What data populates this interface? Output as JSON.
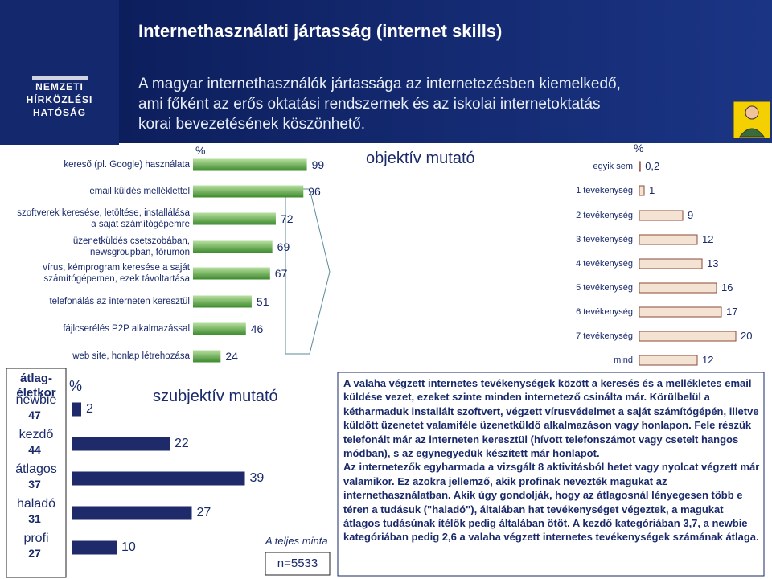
{
  "header": {
    "title": "Internethasználati jártasság (internet skills)",
    "logo": [
      "NEMZETI",
      "HÍRKÖZLÉSI",
      "HATÓSÁG"
    ],
    "subtitle": [
      "A magyar internethasználók jártassága az internetezésben kiemelkedő,",
      "ami főként az erős oktatási rendszernek és az iskolai internetoktatás",
      "korai bevezetésének köszönhető."
    ]
  },
  "chart_data": [
    {
      "type": "bar",
      "orientation": "horizontal",
      "unit_label": "%",
      "categories": [
        "kereső (pl. Google) használata",
        "email küldés melléklettel",
        "szoftverek keresése, letöltése, installálása a saját számítógépemre",
        "üzenetküldés csetszobában, newsgroupban, fórumon",
        "vírus, kémprogram keresése a saját számítógépemen, ezek távoltartása",
        "telefonálás az interneten keresztül",
        "fájlcserélés P2P alkalmazással",
        "web site, honlap létrehozása"
      ],
      "values": [
        99,
        96,
        72,
        69,
        67,
        51,
        46,
        24
      ],
      "color": "#4a9a3a"
    },
    {
      "type": "bar",
      "orientation": "horizontal",
      "title": "objektív mutató",
      "unit_label": "%",
      "categories": [
        "egyik sem",
        "1 tevékenység",
        "2 tevékenység",
        "3 tevékenység",
        "4 tevékenység",
        "5 tevékenység",
        "6 tevékenység",
        "7 tevékenység",
        "mind"
      ],
      "values": [
        0.2,
        1,
        9,
        12,
        13,
        16,
        17,
        20,
        12
      ],
      "value_labels": [
        "0,2",
        "1",
        "9",
        "12",
        "13",
        "16",
        "17",
        "20",
        "12"
      ],
      "color": "#f4e2d2"
    },
    {
      "type": "bar",
      "orientation": "horizontal",
      "title": "szubjektív mutató",
      "unit_label": "%",
      "row_header": [
        "átlag-",
        "életkor"
      ],
      "categories": [
        "newbie",
        "kezdő",
        "átlagos",
        "haladó",
        "profi"
      ],
      "ages": [
        47,
        44,
        37,
        31,
        27
      ],
      "values": [
        2,
        22,
        39,
        27,
        10
      ],
      "color": "#1f2a6b",
      "note": "A teljes minta",
      "sample": "n=5533"
    }
  ],
  "text_box": [
    "A valaha végzett internetes tevékenységek között a keresés és a mellékletes email küldése vezet, ezeket szinte minden internetező csinálta már. Körülbelül a kétharmaduk installált szoftvert, végzett vírusvédelmet a saját számítógépén, illetve küldött üzenetet valamiféle üzenetküldő alkalmazáson vagy honlapon. Fele részük telefonált már az interneten keresztül (hívott telefonszámot vagy csetelt hangos módban), s az egynegyedük készített már honlapot.",
    "Az internetezők egyharmada a vizsgált 8 aktivitásból hetet vagy nyolcat végzett már valamikor. Ez azokra jellemző, akik profinak nevezték magukat az internethasználatban. Akik úgy gondolják, hogy az átlagosnál lényegesen több e téren a tudásuk (\"haladó\"), általában hat tevékenységet végeztek, a magukat átlagos tudásúnak ítélők pedig általában ötöt. A kezdő kategóriában 3,7, a newbie kategóriában pedig 2,6 a valaha végzett internetes tevékenységek számának átlaga."
  ]
}
